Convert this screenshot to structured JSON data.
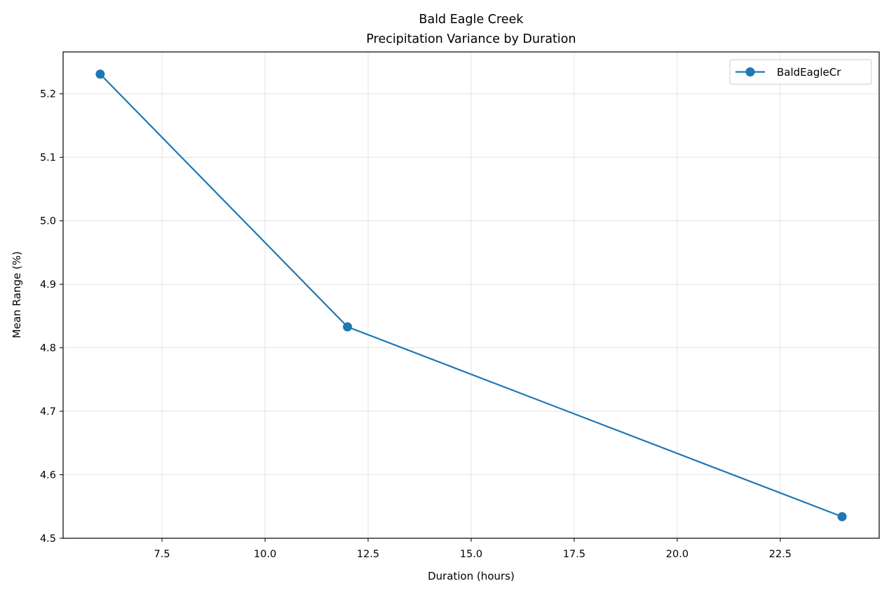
{
  "chart_data": {
    "type": "line",
    "title": "Bald Eagle Creek",
    "subtitle": "Precipitation Variance by Duration",
    "xlabel": "Duration (hours)",
    "ylabel": "Mean Range (%)",
    "xlim": [
      5.1,
      24.9
    ],
    "ylim": [
      4.5,
      5.266
    ],
    "x_ticks": [
      7.5,
      10.0,
      12.5,
      15.0,
      17.5,
      20.0,
      22.5
    ],
    "x_tick_labels": [
      "7.5",
      "10.0",
      "12.5",
      "15.0",
      "17.5",
      "20.0",
      "22.5"
    ],
    "y_ticks": [
      4.5,
      4.6,
      4.7,
      4.8,
      4.9,
      5.0,
      5.1,
      5.2
    ],
    "y_tick_labels": [
      "4.5",
      "4.6",
      "4.7",
      "4.8",
      "4.9",
      "5.0",
      "5.1",
      "5.2"
    ],
    "grid": true,
    "legend_position": "top-right",
    "series": [
      {
        "name": "BaldEagleCr",
        "color": "#1f77b4",
        "marker": "circle",
        "x": [
          6,
          12,
          24
        ],
        "y": [
          5.231,
          4.833,
          4.534
        ]
      }
    ]
  }
}
